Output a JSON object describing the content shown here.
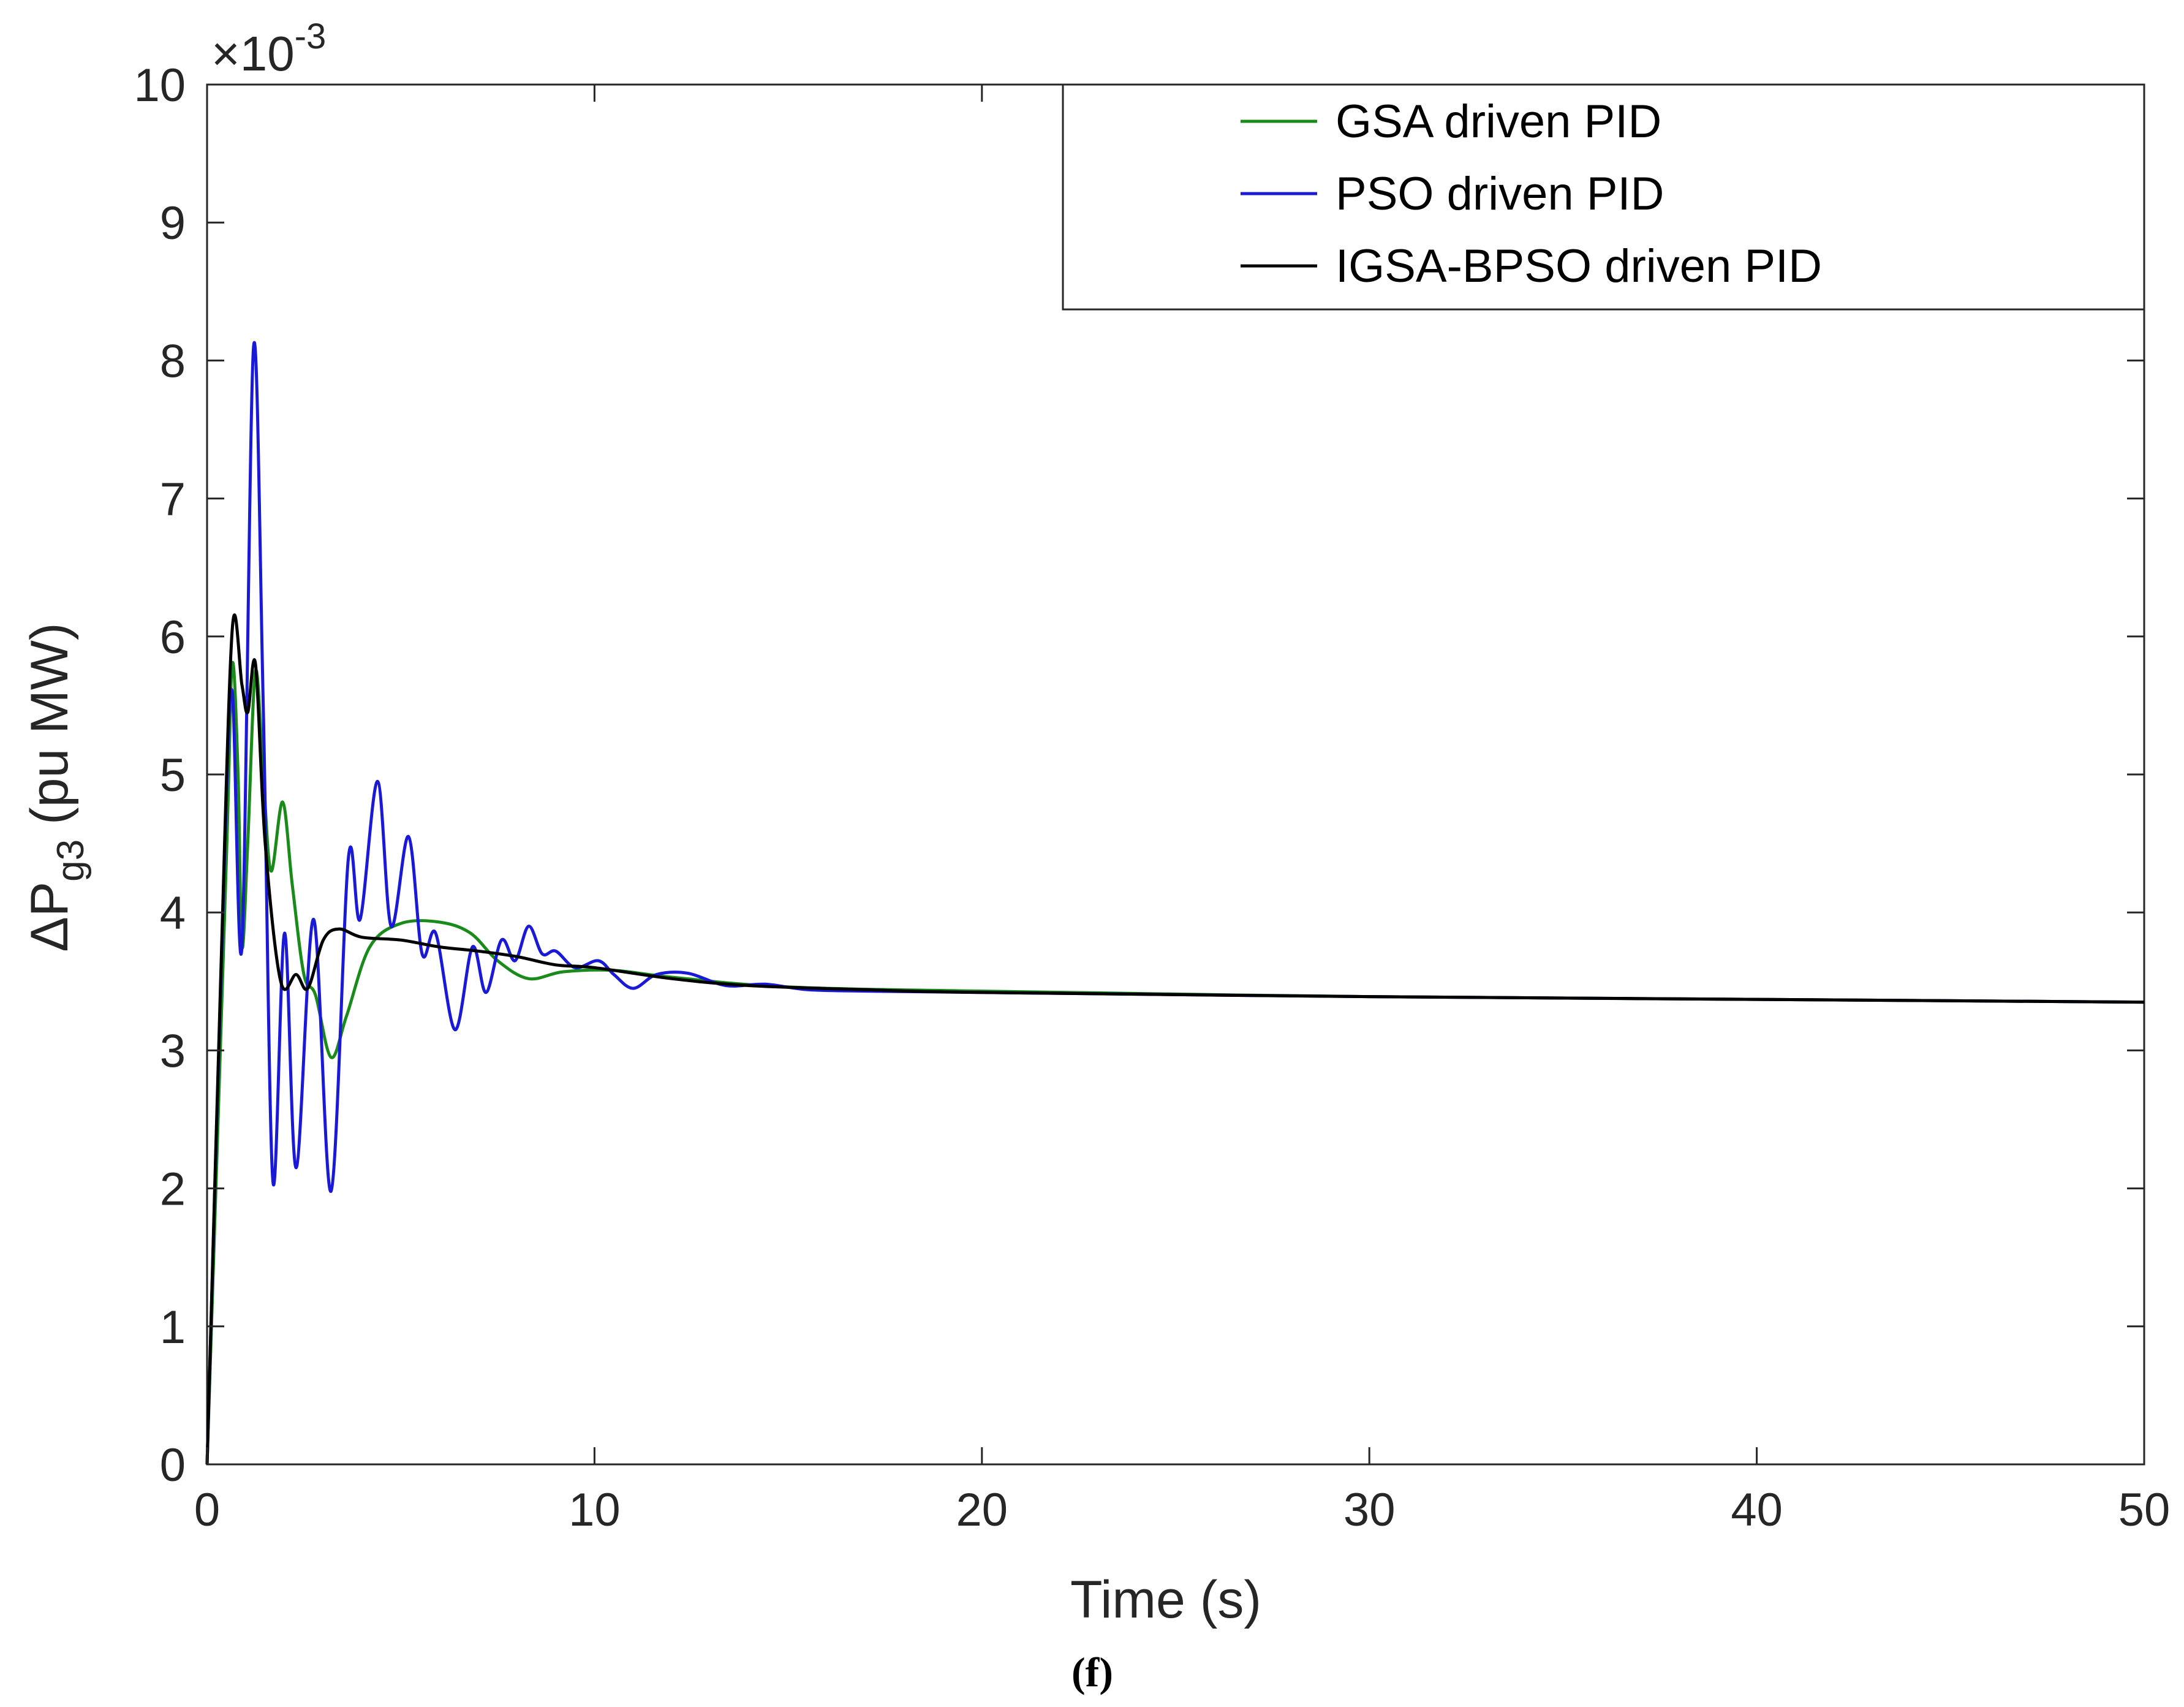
{
  "chart_data": {
    "type": "line",
    "title": "",
    "xlabel": "Time (s)",
    "ylabel": {
      "prefix": "ΔP",
      "subscript": "g3",
      "suffix": " (pu MW)"
    },
    "y_exponent": {
      "prefix": "×10",
      "power": "-3"
    },
    "caption": "(f)",
    "xlim": [
      0,
      50
    ],
    "ylim": [
      0,
      10
    ],
    "xticks": [
      0,
      10,
      20,
      30,
      40,
      50
    ],
    "yticks": [
      0,
      1,
      2,
      3,
      4,
      5,
      6,
      7,
      8,
      9,
      10
    ],
    "legend_position": "top-right",
    "series": [
      {
        "name": "GSA driven PID",
        "color": "#1a8a1a",
        "points": [
          [
            0,
            0
          ],
          [
            0.5,
            4.4
          ],
          [
            0.65,
            5.8
          ],
          [
            0.8,
            5.0
          ],
          [
            0.9,
            3.75
          ],
          [
            1.05,
            4.5
          ],
          [
            1.25,
            5.75
          ],
          [
            1.45,
            5.0
          ],
          [
            1.65,
            4.3
          ],
          [
            1.95,
            4.8
          ],
          [
            2.2,
            4.2
          ],
          [
            2.5,
            3.55
          ],
          [
            2.8,
            3.4
          ],
          [
            3.2,
            2.95
          ],
          [
            3.6,
            3.25
          ],
          [
            4.2,
            3.75
          ],
          [
            5.0,
            3.92
          ],
          [
            6.0,
            3.93
          ],
          [
            6.8,
            3.85
          ],
          [
            7.5,
            3.65
          ],
          [
            8.3,
            3.52
          ],
          [
            9.2,
            3.57
          ],
          [
            10.5,
            3.58
          ],
          [
            12,
            3.53
          ],
          [
            15,
            3.46
          ],
          [
            20,
            3.43
          ],
          [
            30,
            3.39
          ],
          [
            40,
            3.37
          ],
          [
            50,
            3.35
          ]
        ]
      },
      {
        "name": "PSO driven PID",
        "color": "#1a1ad6",
        "points": [
          [
            0,
            0
          ],
          [
            0.45,
            4.4
          ],
          [
            0.65,
            5.6
          ],
          [
            0.9,
            3.75
          ],
          [
            1.2,
            8.1
          ],
          [
            1.45,
            5.5
          ],
          [
            1.7,
            2.05
          ],
          [
            2.0,
            3.85
          ],
          [
            2.3,
            2.15
          ],
          [
            2.75,
            3.95
          ],
          [
            3.2,
            1.98
          ],
          [
            3.65,
            4.4
          ],
          [
            3.95,
            3.95
          ],
          [
            4.4,
            4.95
          ],
          [
            4.75,
            3.9
          ],
          [
            5.2,
            4.55
          ],
          [
            5.55,
            3.7
          ],
          [
            5.9,
            3.85
          ],
          [
            6.4,
            3.15
          ],
          [
            6.85,
            3.75
          ],
          [
            7.2,
            3.42
          ],
          [
            7.6,
            3.8
          ],
          [
            7.95,
            3.65
          ],
          [
            8.3,
            3.9
          ],
          [
            8.65,
            3.7
          ],
          [
            9.0,
            3.72
          ],
          [
            9.5,
            3.6
          ],
          [
            10.1,
            3.65
          ],
          [
            10.5,
            3.55
          ],
          [
            11,
            3.45
          ],
          [
            11.6,
            3.55
          ],
          [
            12.4,
            3.56
          ],
          [
            13.4,
            3.47
          ],
          [
            14.4,
            3.48
          ],
          [
            15.5,
            3.44
          ],
          [
            17,
            3.43
          ],
          [
            20,
            3.42
          ],
          [
            30,
            3.39
          ],
          [
            40,
            3.37
          ],
          [
            50,
            3.35
          ]
        ]
      },
      {
        "name": "IGSA-BPSO driven PID",
        "color": "#000000",
        "points": [
          [
            0,
            0
          ],
          [
            0.35,
            3.5
          ],
          [
            0.65,
            6.05
          ],
          [
            0.9,
            5.65
          ],
          [
            1.05,
            5.45
          ],
          [
            1.25,
            5.8
          ],
          [
            1.5,
            4.5
          ],
          [
            1.9,
            3.5
          ],
          [
            2.3,
            3.55
          ],
          [
            2.6,
            3.45
          ],
          [
            3.0,
            3.8
          ],
          [
            3.4,
            3.88
          ],
          [
            4.0,
            3.82
          ],
          [
            5.0,
            3.8
          ],
          [
            6.0,
            3.75
          ],
          [
            7.0,
            3.72
          ],
          [
            8.0,
            3.68
          ],
          [
            9.0,
            3.62
          ],
          [
            10,
            3.6
          ],
          [
            12,
            3.52
          ],
          [
            14,
            3.47
          ],
          [
            17,
            3.44
          ],
          [
            20,
            3.42
          ],
          [
            30,
            3.39
          ],
          [
            40,
            3.37
          ],
          [
            50,
            3.35
          ]
        ]
      }
    ]
  }
}
